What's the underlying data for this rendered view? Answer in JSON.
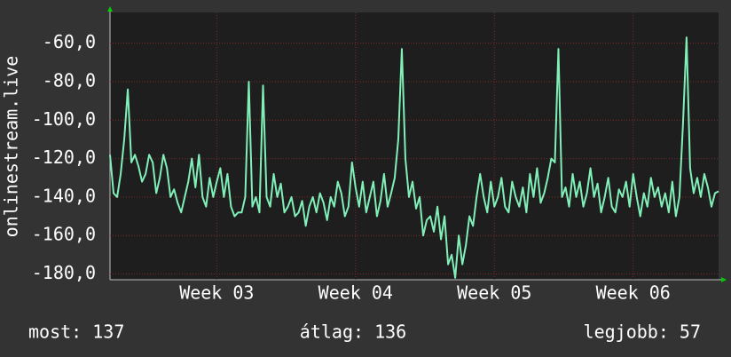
{
  "chart_data": {
    "type": "line",
    "ylabel": "onlinestream.live",
    "color": "#80f0b8",
    "grid": true,
    "xlim": [
      0,
      171
    ],
    "xticks": [
      {
        "value": 30,
        "label": "Week 03"
      },
      {
        "value": 69,
        "label": "Week 04"
      },
      {
        "value": 108,
        "label": "Week 05"
      },
      {
        "value": 147,
        "label": "Week 06"
      }
    ],
    "ylim": [
      -183,
      -44
    ],
    "yticks": [
      {
        "value": -180,
        "label": "-180,0"
      },
      {
        "value": -160,
        "label": "-160,0"
      },
      {
        "value": -140,
        "label": "-140,0"
      },
      {
        "value": -120,
        "label": "-120,0"
      },
      {
        "value": -100,
        "label": "-100,0"
      },
      {
        "value": -80,
        "label": "-80,0"
      },
      {
        "value": -60,
        "label": "-60,0"
      }
    ],
    "values": [
      -118,
      -138,
      -140,
      -128,
      -110,
      -84,
      -122,
      -118,
      -124,
      -132,
      -128,
      -118,
      -122,
      -138,
      -130,
      -118,
      -125,
      -140,
      -136,
      -143,
      -148,
      -140,
      -132,
      -120,
      -135,
      -118,
      -140,
      -145,
      -130,
      -140,
      -132,
      -125,
      -140,
      -128,
      -145,
      -150,
      -148,
      -148,
      -140,
      -80,
      -145,
      -140,
      -148,
      -82,
      -140,
      -145,
      -128,
      -140,
      -133,
      -148,
      -145,
      -140,
      -150,
      -148,
      -142,
      -155,
      -145,
      -140,
      -148,
      -138,
      -143,
      -152,
      -140,
      -145,
      -132,
      -138,
      -150,
      -145,
      -122,
      -135,
      -145,
      -132,
      -148,
      -140,
      -132,
      -150,
      -142,
      -128,
      -145,
      -138,
      -130,
      -110,
      -63,
      -120,
      -140,
      -132,
      -146,
      -140,
      -160,
      -152,
      -150,
      -158,
      -145,
      -162,
      -150,
      -175,
      -170,
      -182,
      -160,
      -175,
      -165,
      -150,
      -155,
      -140,
      -128,
      -140,
      -148,
      -132,
      -145,
      -140,
      -130,
      -145,
      -148,
      -132,
      -140,
      -145,
      -135,
      -148,
      -128,
      -140,
      -125,
      -143,
      -138,
      -130,
      -120,
      -122,
      -63,
      -140,
      -135,
      -145,
      -128,
      -140,
      -132,
      -145,
      -138,
      -125,
      -140,
      -133,
      -148,
      -140,
      -130,
      -145,
      -148,
      -136,
      -140,
      -132,
      -145,
      -128,
      -140,
      -150,
      -138,
      -145,
      -130,
      -140,
      -135,
      -145,
      -138,
      -148,
      -132,
      -150,
      -140,
      -102,
      -57,
      -125,
      -138,
      -130,
      -140,
      -128,
      -135,
      -145,
      -138,
      -137
    ],
    "footer": [
      "most: 137",
      "átlag: 136",
      "legjobb: 57"
    ]
  }
}
